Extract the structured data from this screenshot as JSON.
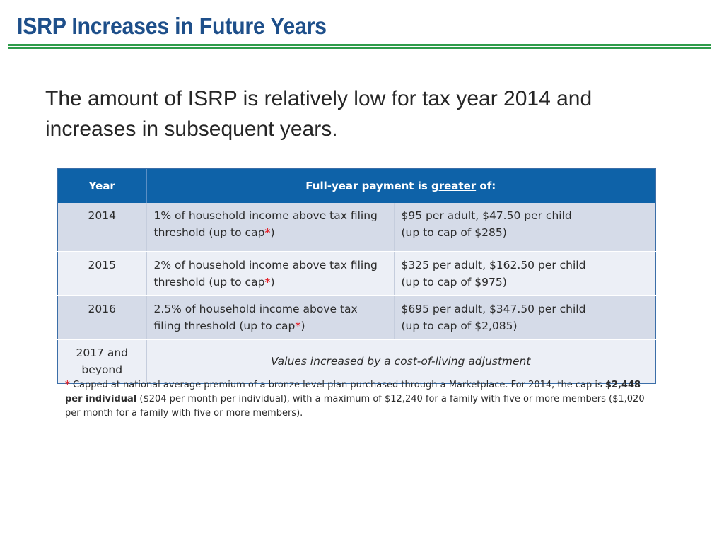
{
  "slide": {
    "title": "ISRP Increases in Future Years",
    "lead": "The amount of ISRP is relatively low for tax year 2014 and increases in subsequent years."
  },
  "table": {
    "header_year": "Year",
    "header_payment_prefix": "Full-year payment is ",
    "header_payment_emphasis": "greater",
    "header_payment_suffix": " of:",
    "rows": [
      {
        "year": "2014",
        "pct_text": "1% of household income above tax filing threshold (up to cap",
        "pct_tail": ")",
        "flat_line1": "$95 per adult, $47.50 per child",
        "flat_line2": "(up to cap of $285)"
      },
      {
        "year": "2015",
        "pct_text": "2% of household income above tax filing threshold (up to cap",
        "pct_tail": ")",
        "flat_line1": "$325 per adult, $162.50 per child",
        "flat_line2": "(up to cap of $975)"
      },
      {
        "year": "2016",
        "pct_text": "2.5% of household income above tax filing threshold (up to cap",
        "pct_tail": ")",
        "flat_line1": "$695 per adult, $347.50 per child",
        "flat_line2": "(up to cap of $2,085)"
      }
    ],
    "final_row": {
      "year": "2017 and beyond",
      "note": "Values increased by a cost-of-living adjustment"
    },
    "asterisk": "*"
  },
  "footnote": {
    "marker": "*",
    "text1": " Capped at national average premium of a bronze level plan purchased through a Marketplace. For 2014, the cap is ",
    "bold": "$2,448 per individual",
    "text2": " ($204 per month per individual), with a maximum of $12,240 for a family with five or more members ($1,020 per month for a family with five or more members)."
  }
}
